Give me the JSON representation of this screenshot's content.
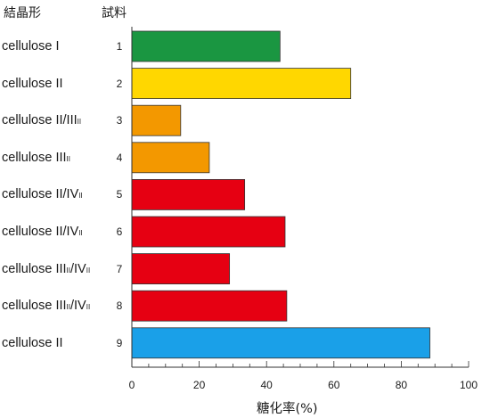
{
  "chart_data": {
    "type": "bar",
    "orientation": "horizontal",
    "header_form": "結晶形",
    "header_sample": "試料",
    "xlabel": "糖化率(%)",
    "xlim": [
      0,
      100
    ],
    "xticks": [
      0,
      20,
      40,
      60,
      80,
      100
    ],
    "grid": false,
    "rows": [
      {
        "form": "cellulose I",
        "form_sub": "",
        "form_tail": "",
        "sample": "1",
        "value": 44,
        "color": "#1a9641"
      },
      {
        "form": "cellulose II",
        "form_sub": "",
        "form_tail": "",
        "sample": "2",
        "value": 65,
        "color": "#ffd700"
      },
      {
        "form": "cellulose II/III",
        "form_sub": "II",
        "form_tail": "",
        "sample": "3",
        "value": 14.5,
        "color": "#f39800"
      },
      {
        "form": "cellulose III",
        "form_sub": "II",
        "form_tail": "",
        "sample": "4",
        "value": 23,
        "color": "#f39800"
      },
      {
        "form": "cellulose II/IV",
        "form_sub": "II",
        "form_tail": "",
        "sample": "5",
        "value": 33.5,
        "color": "#e60012"
      },
      {
        "form": "cellulose II/IV",
        "form_sub": "II",
        "form_tail": "",
        "sample": "6",
        "value": 45.5,
        "color": "#e60012"
      },
      {
        "form": "cellulose III",
        "form_sub": "II",
        "form_tail": "/IVII",
        "sample": "7",
        "value": 29,
        "color": "#e60012"
      },
      {
        "form": "cellulose III",
        "form_sub": "II",
        "form_tail": "/IVII",
        "sample": "8",
        "value": 46,
        "color": "#e60012"
      },
      {
        "form": "cellulose II",
        "form_sub": "",
        "form_tail": "",
        "sample": "9",
        "value": 88.5,
        "color": "#1aa0e8"
      }
    ]
  }
}
